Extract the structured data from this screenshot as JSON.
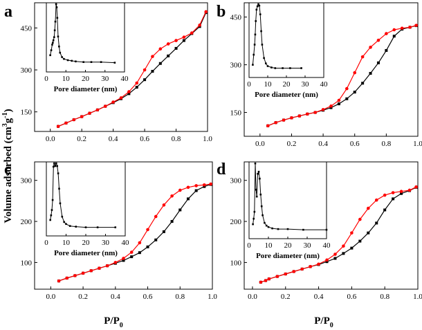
{
  "figure": {
    "xlabel": "P/P",
    "xlabel_sub": "0",
    "ylabel": "Volume adsorbed (cm",
    "ylabel_sup1": "3",
    "ylabel_mid": "g",
    "ylabel_sup2": "-1",
    "ylabel_end": ")"
  },
  "chart_data": [
    {
      "type": "line",
      "panel": "a",
      "xlim": [
        -0.1,
        1.0
      ],
      "ylim": [
        80,
        540
      ],
      "xticks": [
        0.0,
        0.2,
        0.4,
        0.6,
        0.8,
        1.0
      ],
      "yticks": [
        150,
        300,
        450
      ],
      "series": [
        {
          "role": "adsorption",
          "color": "#000000",
          "x": [
            0.05,
            0.1,
            0.15,
            0.2,
            0.25,
            0.3,
            0.35,
            0.4,
            0.45,
            0.5,
            0.55,
            0.6,
            0.65,
            0.7,
            0.75,
            0.8,
            0.85,
            0.9,
            0.95,
            0.99
          ],
          "y": [
            98,
            110,
            122,
            133,
            145,
            157,
            170,
            183,
            197,
            215,
            238,
            265,
            295,
            323,
            350,
            377,
            405,
            430,
            455,
            505
          ]
        },
        {
          "role": "desorption",
          "color": "#ff0000",
          "x": [
            0.05,
            0.1,
            0.15,
            0.2,
            0.25,
            0.3,
            0.35,
            0.4,
            0.45,
            0.5,
            0.55,
            0.6,
            0.65,
            0.7,
            0.75,
            0.8,
            0.85,
            0.9,
            0.95,
            0.99
          ],
          "y": [
            98,
            110,
            122,
            133,
            145,
            157,
            170,
            185,
            200,
            222,
            253,
            300,
            348,
            375,
            393,
            405,
            417,
            432,
            460,
            508
          ]
        }
      ],
      "inset": {
        "xlabel": "Pore diameter (nm)",
        "xlim": [
          0,
          40
        ],
        "xticks": [
          0,
          10,
          20,
          30,
          40
        ],
        "x": [
          2.0,
          2.5,
          3.0,
          3.3,
          3.6,
          4.0,
          4.3,
          4.6,
          5.0,
          5.3,
          5.6,
          6.0,
          6.5,
          7.0,
          8.0,
          9.0,
          11,
          13,
          15,
          19,
          23,
          28,
          35
        ],
        "y": [
          0.18,
          0.26,
          0.35,
          0.38,
          0.42,
          0.47,
          0.58,
          0.72,
          1.0,
          0.95,
          0.78,
          0.48,
          0.32,
          0.22,
          0.15,
          0.12,
          0.1,
          0.09,
          0.08,
          0.07,
          0.07,
          0.07,
          0.06
        ]
      }
    },
    {
      "type": "line",
      "panel": "b",
      "xlim": [
        -0.1,
        1.0
      ],
      "ylim": [
        75,
        495
      ],
      "xticks": [
        0.0,
        0.2,
        0.4,
        0.6,
        0.8,
        1.0
      ],
      "yticks": [
        150,
        300,
        450
      ],
      "series": [
        {
          "role": "adsorption",
          "color": "#000000",
          "x": [
            0.05,
            0.1,
            0.15,
            0.2,
            0.25,
            0.3,
            0.35,
            0.4,
            0.45,
            0.5,
            0.55,
            0.6,
            0.65,
            0.7,
            0.75,
            0.8,
            0.85,
            0.9,
            0.95,
            0.99
          ],
          "y": [
            108,
            118,
            126,
            133,
            139,
            145,
            150,
            157,
            165,
            177,
            193,
            214,
            242,
            273,
            306,
            345,
            390,
            412,
            418,
            423
          ]
        },
        {
          "role": "desorption",
          "color": "#ff0000",
          "x": [
            0.05,
            0.1,
            0.15,
            0.2,
            0.25,
            0.3,
            0.35,
            0.4,
            0.45,
            0.5,
            0.55,
            0.6,
            0.65,
            0.7,
            0.75,
            0.8,
            0.85,
            0.9,
            0.95,
            0.99
          ],
          "y": [
            108,
            118,
            126,
            133,
            139,
            145,
            150,
            159,
            170,
            188,
            225,
            275,
            325,
            355,
            377,
            398,
            410,
            415,
            418,
            424
          ]
        }
      ],
      "inset": {
        "xlabel": "Pore diameter (nm)",
        "xlim": [
          0,
          40
        ],
        "xticks": [
          0,
          10,
          20,
          30,
          40
        ],
        "x": [
          2.0,
          2.5,
          3.0,
          3.3,
          3.6,
          4.0,
          4.5,
          5.0,
          5.5,
          6.0,
          6.5,
          7.0,
          8.0,
          9.0,
          10,
          12,
          14,
          18,
          22,
          28
        ],
        "y": [
          0.1,
          0.25,
          0.4,
          0.55,
          0.75,
          0.92,
          0.97,
          1.0,
          0.98,
          0.85,
          0.6,
          0.4,
          0.2,
          0.12,
          0.08,
          0.06,
          0.05,
          0.05,
          0.05,
          0.05
        ]
      }
    },
    {
      "type": "line",
      "panel": "c",
      "xlim": [
        -0.1,
        1.0
      ],
      "ylim": [
        35,
        345
      ],
      "xticks": [
        0.0,
        0.2,
        0.4,
        0.6,
        0.8,
        1.0
      ],
      "yticks": [
        100,
        200,
        300
      ],
      "series": [
        {
          "role": "adsorption",
          "color": "#000000",
          "x": [
            0.05,
            0.1,
            0.15,
            0.2,
            0.25,
            0.3,
            0.35,
            0.4,
            0.45,
            0.5,
            0.55,
            0.6,
            0.65,
            0.7,
            0.75,
            0.8,
            0.85,
            0.9,
            0.95,
            0.99
          ],
          "y": [
            55,
            62,
            68,
            74,
            80,
            86,
            92,
            98,
            105,
            114,
            124,
            138,
            155,
            175,
            200,
            228,
            255,
            275,
            285,
            290
          ]
        },
        {
          "role": "desorption",
          "color": "#ff0000",
          "x": [
            0.05,
            0.1,
            0.15,
            0.2,
            0.25,
            0.3,
            0.35,
            0.4,
            0.45,
            0.5,
            0.55,
            0.6,
            0.65,
            0.7,
            0.75,
            0.8,
            0.85,
            0.9,
            0.95,
            0.99
          ],
          "y": [
            55,
            62,
            68,
            74,
            80,
            86,
            92,
            100,
            110,
            125,
            148,
            180,
            212,
            240,
            262,
            276,
            283,
            287,
            289,
            291
          ]
        }
      ],
      "inset": {
        "xlabel": "Pore diameter (nm)",
        "xlim": [
          0,
          40
        ],
        "xticks": [
          0,
          10,
          20,
          30,
          40
        ],
        "x": [
          2.0,
          2.4,
          2.8,
          3.2,
          3.6,
          4.0,
          4.5,
          5.0,
          5.5,
          6.0,
          6.5,
          7.0,
          8.0,
          9.0,
          10,
          12,
          15,
          20,
          26,
          35
        ],
        "y": [
          0.15,
          0.22,
          0.3,
          0.45,
          0.95,
          1.0,
          0.96,
          1.0,
          0.96,
          0.85,
          0.62,
          0.4,
          0.2,
          0.12,
          0.09,
          0.06,
          0.05,
          0.04,
          0.04,
          0.04
        ]
      }
    },
    {
      "type": "line",
      "panel": "d",
      "xlim": [
        -0.05,
        1.0
      ],
      "ylim": [
        35,
        345
      ],
      "xticks": [
        0.0,
        0.2,
        0.4,
        0.6,
        0.8,
        1.0
      ],
      "yticks": [
        100,
        200,
        300
      ],
      "series": [
        {
          "role": "adsorption",
          "color": "#000000",
          "x": [
            0.05,
            0.08,
            0.1,
            0.15,
            0.2,
            0.25,
            0.3,
            0.35,
            0.4,
            0.45,
            0.5,
            0.55,
            0.6,
            0.65,
            0.7,
            0.75,
            0.8,
            0.85,
            0.9,
            0.95,
            0.99
          ],
          "y": [
            52,
            56,
            60,
            66,
            72,
            78,
            84,
            90,
            95,
            102,
            110,
            122,
            135,
            152,
            172,
            196,
            228,
            255,
            268,
            275,
            283
          ]
        },
        {
          "role": "desorption",
          "color": "#ff0000",
          "x": [
            0.05,
            0.08,
            0.1,
            0.15,
            0.2,
            0.25,
            0.3,
            0.35,
            0.4,
            0.45,
            0.5,
            0.55,
            0.6,
            0.65,
            0.7,
            0.75,
            0.8,
            0.85,
            0.9,
            0.95,
            0.99
          ],
          "y": [
            52,
            56,
            60,
            66,
            72,
            78,
            84,
            90,
            96,
            106,
            120,
            140,
            172,
            205,
            232,
            252,
            264,
            270,
            273,
            276,
            284
          ]
        }
      ],
      "inset": {
        "xlabel": "Pore diameter (nm)",
        "xlim": [
          0,
          40
        ],
        "xticks": [
          0,
          10,
          20,
          30,
          40
        ],
        "x": [
          2.0,
          2.4,
          2.8,
          3.2,
          3.6,
          4.0,
          4.5,
          5.0,
          5.5,
          6.0,
          6.5,
          7.0,
          8.0,
          9.0,
          10,
          12,
          15,
          20,
          28,
          40
        ],
        "y": [
          0.12,
          0.2,
          0.3,
          1.0,
          0.62,
          0.52,
          0.85,
          0.88,
          0.78,
          0.55,
          0.38,
          0.25,
          0.14,
          0.1,
          0.08,
          0.06,
          0.05,
          0.05,
          0.04,
          0.04
        ]
      }
    }
  ]
}
